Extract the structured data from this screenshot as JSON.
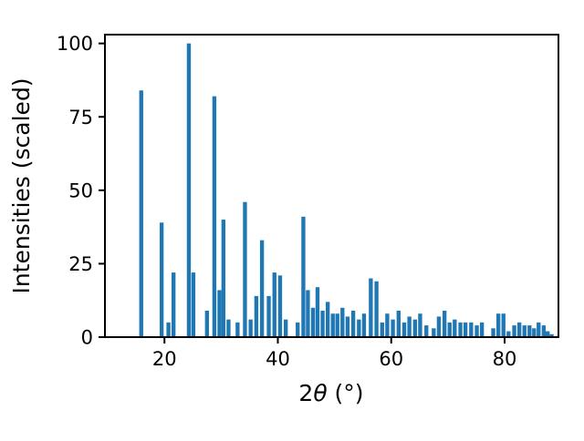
{
  "figure": {
    "background": "#ffffff"
  },
  "chart_data": {
    "type": "bar",
    "title": "",
    "xlabel": "2θ (°)",
    "xlabel_parts": {
      "pre": "2",
      "italic": "θ",
      "post": " (°)"
    },
    "ylabel": "Intensities (scaled)",
    "xlim": [
      9.5,
      89.5
    ],
    "ylim": [
      0,
      103
    ],
    "xticks": [
      20,
      40,
      60,
      80
    ],
    "yticks": [
      0,
      25,
      50,
      75,
      100
    ],
    "grid": false,
    "legend": null,
    "bar_color": "#1f77b4",
    "axis_color": "#000000",
    "bar_width": 0.7,
    "x": [
      15.9,
      19.5,
      20.7,
      21.6,
      24.3,
      25.1,
      27.5,
      28.8,
      29.7,
      30.4,
      31.3,
      32.9,
      34.2,
      35.2,
      36.2,
      37.2,
      38.4,
      39.4,
      40.4,
      41.4,
      43.5,
      44.5,
      45.3,
      46.2,
      47.0,
      47.9,
      48.8,
      49.7,
      50.5,
      51.4,
      52.3,
      53.3,
      54.3,
      55.2,
      56.4,
      57.4,
      58.4,
      59.3,
      60.3,
      61.3,
      62.3,
      63.2,
      64.2,
      65.1,
      66.2,
      67.5,
      68.4,
      69.4,
      70.3,
      71.2,
      72.2,
      73.1,
      74.1,
      75.1,
      76.0,
      78.0,
      78.9,
      79.8,
      80.7,
      81.7,
      82.6,
      83.5,
      84.4,
      85.2,
      86.0,
      86.9,
      87.6,
      88.3
    ],
    "values": [
      84,
      39,
      5,
      22,
      100,
      22,
      9,
      82,
      16,
      40,
      6,
      5,
      46,
      6,
      14,
      33,
      14,
      22,
      21,
      6,
      5,
      41,
      16,
      10,
      17,
      9,
      12,
      8,
      8,
      10,
      7,
      9,
      6,
      8,
      20,
      19,
      5,
      8,
      6,
      9,
      5,
      7,
      6,
      8,
      4,
      3,
      7,
      9,
      5,
      6,
      5,
      5,
      5,
      4,
      5,
      3,
      8,
      8,
      2,
      4,
      5,
      4,
      4,
      3,
      5,
      4,
      2,
      1
    ]
  }
}
